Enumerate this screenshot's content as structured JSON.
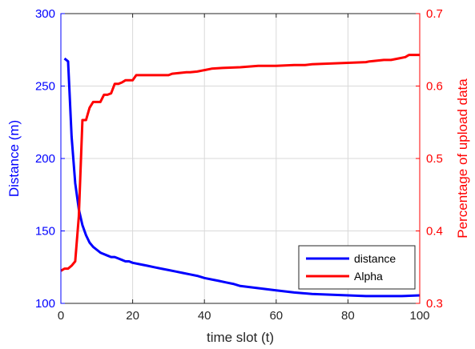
{
  "chart_data": {
    "type": "line",
    "xlabel": "time slot (t)",
    "ylabel_left": "Distance (m)",
    "ylabel_right": "Percentage of upload data",
    "xlim": [
      0,
      100
    ],
    "ylim_left": [
      100,
      300
    ],
    "ylim_right": [
      0.3,
      0.7
    ],
    "x_ticks": [
      0,
      20,
      40,
      60,
      80,
      100
    ],
    "y_ticks_left": [
      100,
      150,
      200,
      250,
      300
    ],
    "y_ticks_right": [
      0.3,
      0.4,
      0.5,
      0.6,
      0.7
    ],
    "grid": true,
    "legend_position": "bottom-right",
    "colors": {
      "left_axis": "#0000ff",
      "right_axis": "#ff0000",
      "grid": "#d9d9d9"
    },
    "series": [
      {
        "name": "distance",
        "axis": "left",
        "color": "#0000ff",
        "x": [
          1,
          2,
          3,
          4,
          5,
          6,
          7,
          8,
          9,
          10,
          11,
          12,
          13,
          14,
          15,
          16,
          17,
          18,
          19,
          20,
          22,
          24,
          26,
          28,
          30,
          32,
          34,
          36,
          38,
          40,
          42,
          44,
          46,
          48,
          50,
          55,
          60,
          65,
          70,
          75,
          80,
          85,
          90,
          95,
          100
        ],
        "y": [
          269,
          267,
          215,
          183,
          165,
          154,
          147,
          142,
          139,
          137,
          135,
          134,
          133,
          132,
          132,
          131,
          130,
          129,
          129,
          128,
          127,
          126,
          125,
          124,
          123,
          122,
          121,
          120,
          119,
          117.5,
          116.5,
          115.5,
          114.5,
          113.5,
          112,
          110.5,
          109,
          107.5,
          106.5,
          106,
          105.5,
          105,
          105,
          105,
          105.5
        ]
      },
      {
        "name": "Alpha",
        "axis": "right",
        "color": "#ff0000",
        "x": [
          0,
          1,
          2,
          3,
          4,
          5,
          6,
          7,
          8,
          9,
          10,
          11,
          12,
          13,
          14,
          15,
          16,
          17,
          18,
          19,
          20,
          21,
          22,
          25,
          28,
          30,
          31,
          35,
          36,
          38,
          40,
          42,
          45,
          50,
          55,
          60,
          65,
          68,
          70,
          80,
          85,
          86,
          90,
          92,
          94,
          96,
          97,
          98,
          100
        ],
        "y": [
          0.345,
          0.348,
          0.348,
          0.352,
          0.358,
          0.42,
          0.553,
          0.553,
          0.57,
          0.578,
          0.578,
          0.578,
          0.588,
          0.588,
          0.59,
          0.603,
          0.603,
          0.605,
          0.608,
          0.608,
          0.608,
          0.615,
          0.615,
          0.615,
          0.615,
          0.615,
          0.617,
          0.619,
          0.619,
          0.62,
          0.622,
          0.624,
          0.625,
          0.626,
          0.628,
          0.628,
          0.629,
          0.629,
          0.63,
          0.632,
          0.633,
          0.634,
          0.636,
          0.636,
          0.638,
          0.64,
          0.643,
          0.643,
          0.643
        ]
      }
    ]
  }
}
